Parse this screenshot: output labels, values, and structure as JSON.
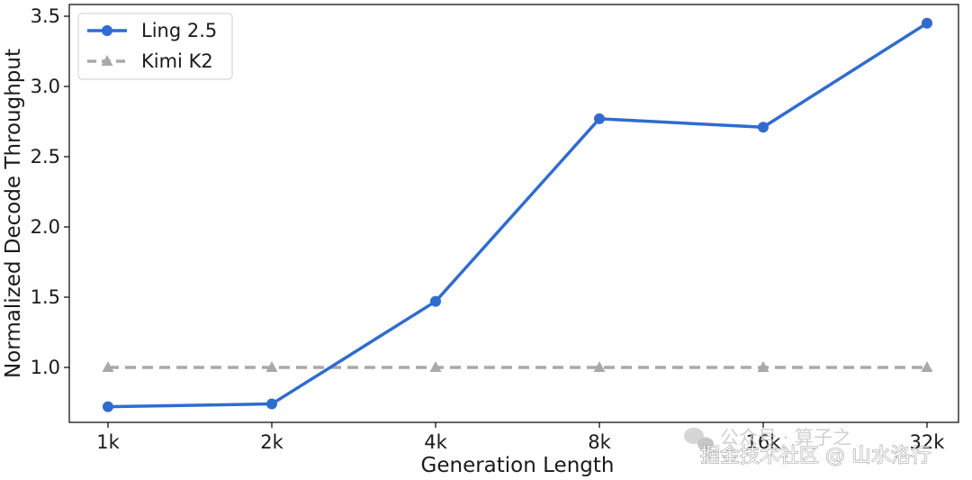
{
  "chart_data": {
    "type": "line",
    "categories": [
      "1k",
      "2k",
      "4k",
      "8k",
      "16k",
      "32k"
    ],
    "xlabel": "Generation Length",
    "ylabel": "Normalized Decode Throughput",
    "ylim": [
      0.6,
      3.55
    ],
    "yticks": [
      "1.0",
      "1.5",
      "2.0",
      "2.5",
      "3.0",
      "3.5"
    ],
    "grid": false,
    "legend_position": "top-left",
    "series": [
      {
        "name": "Ling 2.5",
        "values": [
          0.72,
          0.74,
          1.47,
          2.77,
          2.71,
          3.45
        ],
        "color": "#2f6ccf",
        "marker": "circle",
        "line_style": "solid"
      },
      {
        "name": "Kimi K2",
        "values": [
          1.0,
          1.0,
          1.0,
          1.0,
          1.0,
          1.0
        ],
        "color": "#a9a9a9",
        "marker": "triangle",
        "line_style": "dashed"
      }
    ]
  },
  "watermark": {
    "line1": "公众号 · 算子之",
    "line2": "掘金技术社区 @ 山水洛行"
  }
}
